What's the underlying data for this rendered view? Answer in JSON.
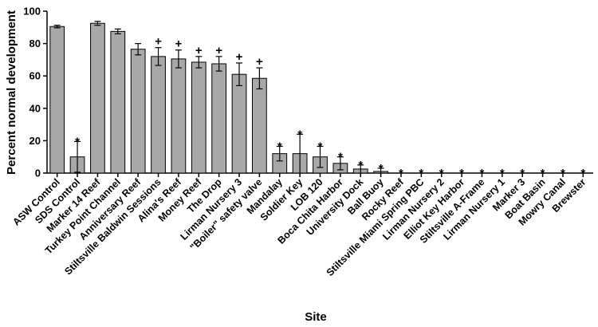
{
  "chart_data": {
    "type": "bar",
    "xlabel": "Site",
    "ylabel": "Percent normal development",
    "ylim": [
      0,
      100
    ],
    "yticks": [
      0,
      20,
      40,
      60,
      80,
      100
    ],
    "grid": false,
    "legend": "none",
    "bar_color": "#a8a8a8",
    "categories": [
      "ASW Control",
      "SDS Control",
      "Marker 14 Reef",
      "Turkey Point Channel",
      "Anniversary Reef",
      "Stiltsville Baldwin Sessions",
      "Alina's Reef",
      "Money Reef",
      "The Drop",
      "Lirman Nursery 3",
      "\"Boiler\" safety valve",
      "Mandalay",
      "Soldier Key",
      "LOB 120",
      "Boca Chita Harbor",
      "University Dock",
      "Ball Buoy",
      "Rocky Reef",
      "Stiltsville Miami Spring PBC",
      "Lirman Nursery 2",
      "Elliot Key Harbor",
      "Stiltsville A-Frame",
      "Lirman Nursery 1",
      "Marker 3",
      "Boat Basin",
      "Mowry Canal",
      "Brewster"
    ],
    "values": [
      90.5,
      10,
      92.5,
      87.5,
      76.5,
      72,
      70.5,
      68.5,
      67.5,
      61,
      58.5,
      12,
      12,
      10,
      6,
      2.5,
      1,
      0,
      0,
      0,
      0,
      0,
      0,
      0,
      0,
      0,
      0
    ],
    "errors": [
      0.8,
      9.5,
      1.2,
      1.5,
      3.5,
      5.5,
      5.5,
      3.5,
      4.5,
      7,
      6.5,
      4.5,
      12,
      6.5,
      4,
      2.5,
      2,
      0,
      0,
      0,
      0,
      0,
      0,
      0,
      0,
      0,
      0
    ],
    "significance": [
      "",
      "*",
      "",
      "",
      "",
      "+",
      "+",
      "+",
      "+",
      "+",
      "+",
      "*",
      "*",
      "*",
      "*",
      "*",
      "*",
      "*",
      "*",
      "*",
      "*",
      "*",
      "*",
      "*",
      "*",
      "*",
      "*"
    ]
  }
}
